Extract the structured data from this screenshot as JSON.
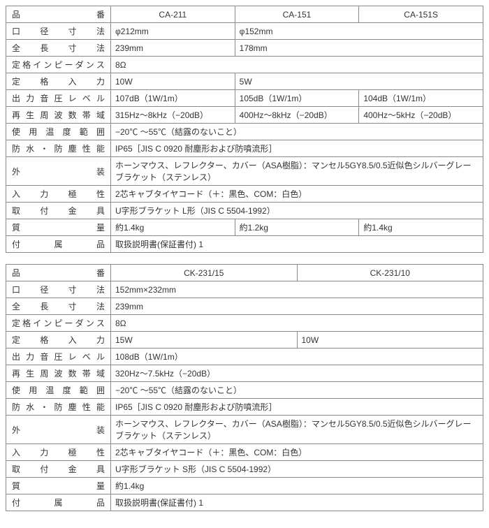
{
  "table1": {
    "col_label_width": 150,
    "headers": [
      "CA-211",
      "CA-151",
      "CA-151S"
    ],
    "rows": [
      {
        "label": "品番",
        "type": "header"
      },
      {
        "label": "口径寸法",
        "cells": [
          {
            "v": "φ212mm",
            "span": 1
          },
          {
            "v": "φ152mm",
            "span": 2
          }
        ]
      },
      {
        "label": "全長寸法",
        "cells": [
          {
            "v": "239mm",
            "span": 1
          },
          {
            "v": "178mm",
            "span": 2
          }
        ]
      },
      {
        "label": "定格インピーダンス",
        "cells": [
          {
            "v": "8Ω",
            "span": 3
          }
        ]
      },
      {
        "label": "定格入力",
        "cells": [
          {
            "v": "10W",
            "span": 1
          },
          {
            "v": "5W",
            "span": 2
          }
        ]
      },
      {
        "label": "出力音圧レベル",
        "cells": [
          {
            "v": "107dB（1W/1m）",
            "span": 1
          },
          {
            "v": "105dB（1W/1m）",
            "span": 1
          },
          {
            "v": "104dB（1W/1m）",
            "span": 1
          }
        ]
      },
      {
        "label": "再生周波数帯域",
        "cells": [
          {
            "v": "315Hz～8kHz（−20dB）",
            "span": 1
          },
          {
            "v": "400Hz～8kHz（−20dB）",
            "span": 1
          },
          {
            "v": "400Hz～5kHz（−20dB）",
            "span": 1
          }
        ]
      },
      {
        "label": "使用温度範囲",
        "cells": [
          {
            "v": "−20℃ ～55℃（結露のないこと）",
            "span": 3
          }
        ]
      },
      {
        "label": "防水・防塵性能",
        "cells": [
          {
            "v": "IP65［JIS C 0920 耐塵形および防噴流形］",
            "span": 3
          }
        ]
      },
      {
        "label": "外装",
        "tall": true,
        "cells": [
          {
            "v": "ホーンマウス、レフレクター、カバー（ASA樹脂）：マンセル5GY8.5/0.5近似色シルバーグレー\nブラケット（ステンレス）",
            "span": 3
          }
        ]
      },
      {
        "label": "入力極性",
        "cells": [
          {
            "v": "2芯キャブタイヤコード（＋：黒色、COM：白色）",
            "span": 3
          }
        ]
      },
      {
        "label": "取付金具",
        "cells": [
          {
            "v": "U字形ブラケット L形（JIS C 5504-1992）",
            "span": 3
          }
        ]
      },
      {
        "label": "質量",
        "cells": [
          {
            "v": "約1.4kg",
            "span": 1
          },
          {
            "v": "約1.2kg",
            "span": 1
          },
          {
            "v": "約1.4kg",
            "span": 1
          }
        ]
      },
      {
        "label": "付属品",
        "cells": [
          {
            "v": "取扱説明書(保証書付) 1",
            "span": 3
          }
        ]
      }
    ]
  },
  "table2": {
    "col_label_width": 150,
    "headers": [
      "CK-231/15",
      "CK-231/10"
    ],
    "rows": [
      {
        "label": "品番",
        "type": "header"
      },
      {
        "label": "口径寸法",
        "cells": [
          {
            "v": "152mm×232mm",
            "span": 2
          }
        ]
      },
      {
        "label": "全長寸法",
        "cells": [
          {
            "v": "239mm",
            "span": 2
          }
        ]
      },
      {
        "label": "定格インピーダンス",
        "cells": [
          {
            "v": "8Ω",
            "span": 2
          }
        ]
      },
      {
        "label": "定格入力",
        "cells": [
          {
            "v": "15W",
            "span": 1
          },
          {
            "v": "10W",
            "span": 1
          }
        ]
      },
      {
        "label": "出力音圧レベル",
        "cells": [
          {
            "v": "108dB（1W/1m）",
            "span": 2
          }
        ]
      },
      {
        "label": "再生周波数帯域",
        "cells": [
          {
            "v": "320Hz～7.5kHz（−20dB）",
            "span": 2
          }
        ]
      },
      {
        "label": "使用温度範囲",
        "cells": [
          {
            "v": "−20℃ ～55℃（結露のないこと）",
            "span": 2
          }
        ]
      },
      {
        "label": "防水・防塵性能",
        "cells": [
          {
            "v": "IP65［JIS C 0920 耐塵形および防噴流形］",
            "span": 2
          }
        ]
      },
      {
        "label": "外装",
        "tall": true,
        "cells": [
          {
            "v": "ホーンマウス、レフレクター、カバー（ASA樹脂）：マンセル5GY8.5/0.5近似色シルバーグレー\nブラケット（ステンレス）",
            "span": 2
          }
        ]
      },
      {
        "label": "入力極性",
        "cells": [
          {
            "v": "2芯キャブタイヤコード（＋：黒色、COM：白色）",
            "span": 2
          }
        ]
      },
      {
        "label": "取付金具",
        "cells": [
          {
            "v": "U字形ブラケット S形（JIS C 5504-1992）",
            "span": 2
          }
        ]
      },
      {
        "label": "質量",
        "cells": [
          {
            "v": "約1.4kg",
            "span": 2
          }
        ]
      },
      {
        "label": "付属品",
        "cells": [
          {
            "v": "取扱説明書(保証書付) 1",
            "span": 2
          }
        ]
      }
    ]
  }
}
